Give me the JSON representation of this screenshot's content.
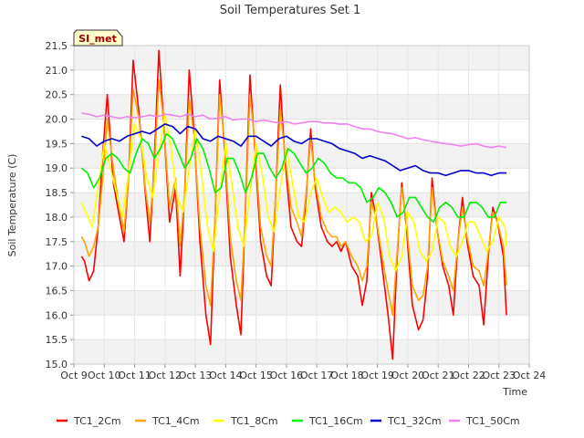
{
  "chart_data": {
    "type": "line",
    "title": "Soil Temperatures Set 1",
    "xlabel": "Time",
    "ylabel": "Soil Temperature (C)",
    "badge": "SI_met",
    "ylim": [
      15.0,
      21.5
    ],
    "yticks": [
      "15.0",
      "15.5",
      "16.0",
      "16.5",
      "17.0",
      "17.5",
      "18.0",
      "18.5",
      "19.0",
      "19.5",
      "20.0",
      "20.5",
      "21.0",
      "21.5"
    ],
    "xlim": [
      9,
      24
    ],
    "xticks": [
      "Oct 9",
      "Oct 10",
      "Oct 11",
      "Oct 12",
      "Oct 13",
      "Oct 14",
      "Oct 15",
      "Oct 16",
      "Oct 17",
      "Oct 18",
      "Oct 19",
      "Oct 20",
      "Oct 21",
      "Oct 22",
      "Oct 23",
      "Oct 24"
    ],
    "grid": true,
    "legend": "bottom",
    "series": [
      {
        "name": "TC1_2Cm",
        "color": "#ff0000",
        "x": [
          9.25,
          9.35,
          9.5,
          9.65,
          9.8,
          9.95,
          10.1,
          10.3,
          10.5,
          10.65,
          10.8,
          10.95,
          11.15,
          11.35,
          11.5,
          11.65,
          11.8,
          11.95,
          12.15,
          12.35,
          12.5,
          12.65,
          12.8,
          12.95,
          13.15,
          13.35,
          13.5,
          13.65,
          13.8,
          13.95,
          14.15,
          14.35,
          14.5,
          14.65,
          14.8,
          14.95,
          15.15,
          15.35,
          15.5,
          15.65,
          15.8,
          15.95,
          16.15,
          16.35,
          16.5,
          16.65,
          16.8,
          16.95,
          17.15,
          17.35,
          17.5,
          17.65,
          17.8,
          17.95,
          18.15,
          18.35,
          18.5,
          18.65,
          18.8,
          18.95,
          19.15,
          19.35,
          19.5,
          19.65,
          19.8,
          19.95,
          20.15,
          20.35,
          20.5,
          20.65,
          20.8,
          20.95,
          21.15,
          21.35,
          21.5,
          21.65,
          21.8,
          21.95,
          22.15,
          22.35,
          22.5,
          22.65,
          22.8,
          22.95,
          23.15,
          23.25
        ],
        "y": [
          17.2,
          17.1,
          16.7,
          16.9,
          17.8,
          19.3,
          20.5,
          18.7,
          18.0,
          17.5,
          18.8,
          21.2,
          20.1,
          18.5,
          17.5,
          19.2,
          21.4,
          20.0,
          17.9,
          18.6,
          16.8,
          18.5,
          21.0,
          19.8,
          17.5,
          16.0,
          15.4,
          18.0,
          20.8,
          19.5,
          17.2,
          16.2,
          15.6,
          18.2,
          20.9,
          19.5,
          17.5,
          16.8,
          16.6,
          18.5,
          20.7,
          19.2,
          17.8,
          17.5,
          17.4,
          18.4,
          19.8,
          18.6,
          17.8,
          17.5,
          17.4,
          17.5,
          17.3,
          17.5,
          17.0,
          16.8,
          16.2,
          16.7,
          18.5,
          18.0,
          17.0,
          16.0,
          15.1,
          17.2,
          18.7,
          17.8,
          16.2,
          15.7,
          15.9,
          16.8,
          18.8,
          17.8,
          17.0,
          16.6,
          16.0,
          17.5,
          18.4,
          17.5,
          16.8,
          16.6,
          15.8,
          17.2,
          18.2,
          17.9,
          17.2,
          16.0
        ]
      },
      {
        "name": "TC1_4Cm",
        "color": "#ffa500",
        "x": [
          9.25,
          9.35,
          9.5,
          9.65,
          9.8,
          9.95,
          10.1,
          10.3,
          10.5,
          10.65,
          10.8,
          10.95,
          11.15,
          11.35,
          11.5,
          11.65,
          11.8,
          11.95,
          12.15,
          12.35,
          12.5,
          12.65,
          12.8,
          12.95,
          13.15,
          13.35,
          13.5,
          13.65,
          13.8,
          13.95,
          14.15,
          14.35,
          14.5,
          14.65,
          14.8,
          14.95,
          15.15,
          15.35,
          15.5,
          15.65,
          15.8,
          15.95,
          16.15,
          16.35,
          16.5,
          16.65,
          16.8,
          16.95,
          17.15,
          17.35,
          17.5,
          17.65,
          17.8,
          17.95,
          18.15,
          18.35,
          18.5,
          18.65,
          18.8,
          18.95,
          19.15,
          19.35,
          19.5,
          19.65,
          19.8,
          19.95,
          20.15,
          20.35,
          20.5,
          20.65,
          20.8,
          20.95,
          21.15,
          21.35,
          21.5,
          21.65,
          21.8,
          21.95,
          22.15,
          22.35,
          22.5,
          22.65,
          22.8,
          22.95,
          23.15,
          23.25
        ],
        "y": [
          17.6,
          17.5,
          17.2,
          17.4,
          17.8,
          18.8,
          20.0,
          19.0,
          18.2,
          17.7,
          18.8,
          20.6,
          20.0,
          18.6,
          17.9,
          19.0,
          20.8,
          20.0,
          18.2,
          18.8,
          17.4,
          18.5,
          20.4,
          19.7,
          17.8,
          16.6,
          16.2,
          18.0,
          20.5,
          19.6,
          17.6,
          16.7,
          16.3,
          18.1,
          20.5,
          19.6,
          17.8,
          17.2,
          17.0,
          18.5,
          20.2,
          19.3,
          18.2,
          17.9,
          17.6,
          18.5,
          19.6,
          18.7,
          18.0,
          17.7,
          17.6,
          17.6,
          17.4,
          17.5,
          17.2,
          17.0,
          16.7,
          17.0,
          18.3,
          18.0,
          17.2,
          16.5,
          16.0,
          17.3,
          18.6,
          17.9,
          16.6,
          16.3,
          16.4,
          17.0,
          18.6,
          17.8,
          17.1,
          16.8,
          16.5,
          17.5,
          18.2,
          17.6,
          17.0,
          16.9,
          16.6,
          17.3,
          18.1,
          17.9,
          17.4,
          16.6
        ]
      },
      {
        "name": "TC1_8Cm",
        "color": "#ffff00",
        "x": [
          9.25,
          9.4,
          9.6,
          9.8,
          10.0,
          10.2,
          10.4,
          10.6,
          10.8,
          11.0,
          11.2,
          11.4,
          11.6,
          11.8,
          12.0,
          12.2,
          12.4,
          12.6,
          12.8,
          13.0,
          13.2,
          13.4,
          13.6,
          13.8,
          14.0,
          14.2,
          14.4,
          14.6,
          14.8,
          15.0,
          15.2,
          15.4,
          15.6,
          15.8,
          16.0,
          16.2,
          16.4,
          16.6,
          16.8,
          17.0,
          17.2,
          17.4,
          17.6,
          17.8,
          18.0,
          18.2,
          18.4,
          18.6,
          18.8,
          19.0,
          19.2,
          19.4,
          19.6,
          19.8,
          20.0,
          20.2,
          20.4,
          20.6,
          20.8,
          21.0,
          21.2,
          21.4,
          21.6,
          21.8,
          22.0,
          22.2,
          22.4,
          22.6,
          22.8,
          23.0,
          23.2,
          23.25
        ],
        "y": [
          18.3,
          18.1,
          17.8,
          18.6,
          19.5,
          19.0,
          18.5,
          18.0,
          18.9,
          19.9,
          19.6,
          18.8,
          18.4,
          19.3,
          20.1,
          19.4,
          18.4,
          18.1,
          19.0,
          19.8,
          18.9,
          17.8,
          17.3,
          18.5,
          19.5,
          18.7,
          17.8,
          17.4,
          18.5,
          19.5,
          18.9,
          18.0,
          17.7,
          18.6,
          19.4,
          18.7,
          18.0,
          17.9,
          18.5,
          18.8,
          18.4,
          18.1,
          18.2,
          18.1,
          17.9,
          18.0,
          17.9,
          17.5,
          17.6,
          18.3,
          18.0,
          17.2,
          16.9,
          17.2,
          18.1,
          17.9,
          17.3,
          17.1,
          17.3,
          18.0,
          17.9,
          17.4,
          17.2,
          17.5,
          17.9,
          17.9,
          17.6,
          17.3,
          17.5,
          18.0,
          17.8,
          17.4
        ]
      },
      {
        "name": "TC1_16Cm",
        "color": "#00ee00",
        "x": [
          9.25,
          9.45,
          9.65,
          9.85,
          10.05,
          10.25,
          10.45,
          10.65,
          10.85,
          11.05,
          11.25,
          11.45,
          11.65,
          11.85,
          12.05,
          12.25,
          12.45,
          12.65,
          12.85,
          13.05,
          13.25,
          13.45,
          13.65,
          13.85,
          14.05,
          14.25,
          14.45,
          14.65,
          14.85,
          15.05,
          15.25,
          15.45,
          15.65,
          15.85,
          16.05,
          16.25,
          16.45,
          16.65,
          16.85,
          17.05,
          17.25,
          17.45,
          17.65,
          17.85,
          18.05,
          18.25,
          18.45,
          18.65,
          18.85,
          19.05,
          19.25,
          19.45,
          19.65,
          19.85,
          20.05,
          20.25,
          20.45,
          20.65,
          20.85,
          21.05,
          21.25,
          21.45,
          21.65,
          21.85,
          22.05,
          22.25,
          22.45,
          22.65,
          22.85,
          23.05,
          23.25
        ],
        "y": [
          19.0,
          18.9,
          18.6,
          18.8,
          19.2,
          19.3,
          19.2,
          19.0,
          18.9,
          19.3,
          19.6,
          19.5,
          19.2,
          19.4,
          19.7,
          19.6,
          19.3,
          19.0,
          19.2,
          19.6,
          19.4,
          19.0,
          18.5,
          18.6,
          19.2,
          19.2,
          18.9,
          18.5,
          18.8,
          19.3,
          19.3,
          19.0,
          18.8,
          19.0,
          19.4,
          19.3,
          19.1,
          18.9,
          19.0,
          19.2,
          19.1,
          18.9,
          18.8,
          18.8,
          18.7,
          18.7,
          18.6,
          18.3,
          18.4,
          18.6,
          18.5,
          18.3,
          18.0,
          18.1,
          18.4,
          18.4,
          18.2,
          18.0,
          17.9,
          18.2,
          18.3,
          18.2,
          18.0,
          18.0,
          18.3,
          18.3,
          18.2,
          18.0,
          18.0,
          18.3,
          18.3
        ]
      },
      {
        "name": "TC1_32Cm",
        "color": "#0000cc",
        "x": [
          9.25,
          9.5,
          9.75,
          10.0,
          10.25,
          10.5,
          10.75,
          11.0,
          11.25,
          11.5,
          11.75,
          12.0,
          12.25,
          12.5,
          12.75,
          13.0,
          13.25,
          13.5,
          13.75,
          14.0,
          14.25,
          14.5,
          14.75,
          15.0,
          15.25,
          15.5,
          15.75,
          16.0,
          16.25,
          16.5,
          16.75,
          17.0,
          17.25,
          17.5,
          17.75,
          18.0,
          18.25,
          18.5,
          18.75,
          19.0,
          19.25,
          19.5,
          19.75,
          20.0,
          20.25,
          20.5,
          20.75,
          21.0,
          21.25,
          21.5,
          21.75,
          22.0,
          22.25,
          22.5,
          22.75,
          23.0,
          23.25
        ],
        "y": [
          19.65,
          19.6,
          19.45,
          19.55,
          19.6,
          19.55,
          19.65,
          19.7,
          19.75,
          19.7,
          19.8,
          19.9,
          19.85,
          19.7,
          19.85,
          19.8,
          19.6,
          19.55,
          19.65,
          19.6,
          19.55,
          19.45,
          19.65,
          19.65,
          19.55,
          19.45,
          19.6,
          19.65,
          19.55,
          19.5,
          19.6,
          19.6,
          19.55,
          19.5,
          19.4,
          19.35,
          19.3,
          19.2,
          19.25,
          19.2,
          19.15,
          19.05,
          18.95,
          19.0,
          19.05,
          18.95,
          18.9,
          18.9,
          18.85,
          18.9,
          18.95,
          18.95,
          18.9,
          18.9,
          18.85,
          18.9,
          18.9
        ]
      },
      {
        "name": "TC1_50Cm",
        "color": "#ee82ee",
        "x": [
          9.25,
          9.5,
          9.75,
          10.0,
          10.25,
          10.5,
          10.75,
          11.0,
          11.25,
          11.5,
          11.75,
          12.0,
          12.25,
          12.5,
          12.75,
          13.0,
          13.25,
          13.5,
          13.75,
          14.0,
          14.25,
          14.5,
          14.75,
          15.0,
          15.25,
          15.5,
          15.75,
          16.0,
          16.25,
          16.5,
          16.75,
          17.0,
          17.25,
          17.5,
          17.75,
          18.0,
          18.25,
          18.5,
          18.75,
          19.0,
          19.25,
          19.5,
          19.75,
          20.0,
          20.25,
          20.5,
          20.75,
          21.0,
          21.25,
          21.5,
          21.75,
          22.0,
          22.25,
          22.5,
          22.75,
          23.0,
          23.25
        ],
        "y": [
          20.12,
          20.1,
          20.05,
          20.08,
          20.05,
          20.02,
          20.05,
          20.03,
          20.05,
          20.08,
          20.05,
          20.1,
          20.08,
          20.05,
          20.1,
          20.05,
          20.08,
          20.0,
          20.02,
          20.05,
          19.98,
          20.0,
          20.0,
          19.95,
          19.98,
          19.95,
          19.92,
          19.95,
          19.9,
          19.92,
          19.95,
          19.95,
          19.92,
          19.92,
          19.9,
          19.9,
          19.85,
          19.8,
          19.8,
          19.75,
          19.72,
          19.7,
          19.65,
          19.6,
          19.62,
          19.58,
          19.55,
          19.52,
          19.5,
          19.48,
          19.45,
          19.48,
          19.5,
          19.45,
          19.42,
          19.45,
          19.42
        ]
      }
    ]
  }
}
